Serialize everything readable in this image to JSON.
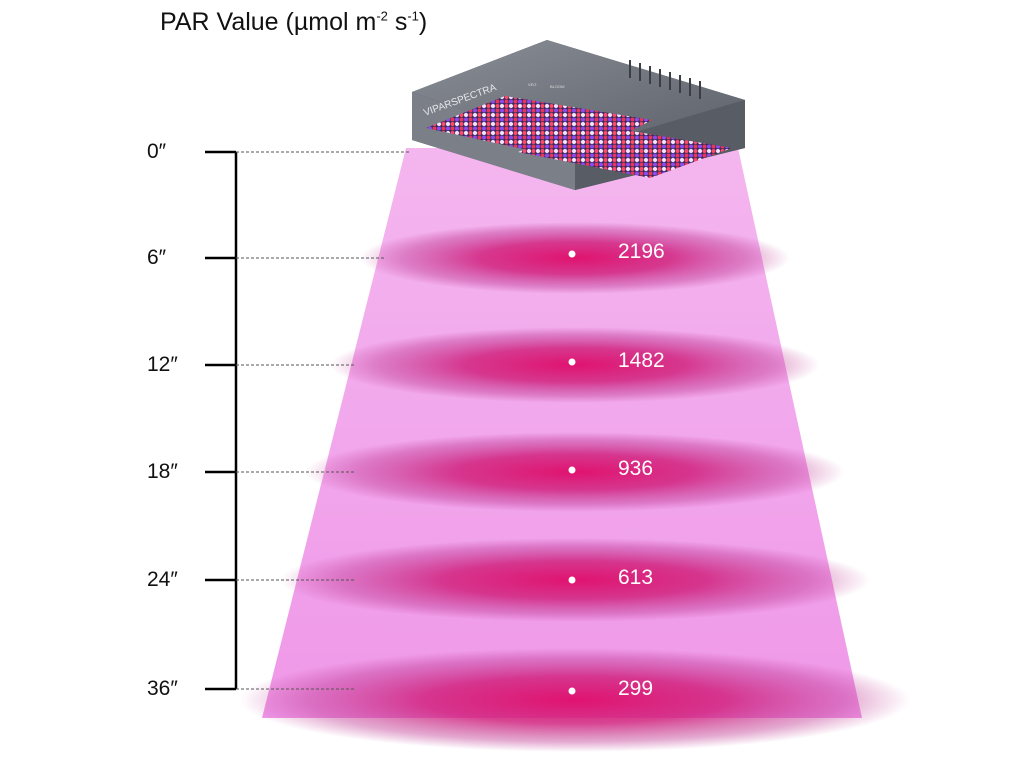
{
  "title": {
    "main": "PAR Value (µmol m",
    "exp1": "-2",
    "mid": " s",
    "exp2": "-1",
    "end": ")"
  },
  "lamp": {
    "brand": "VIPARSPECTRA",
    "switch_labels": [
      "VEG",
      "BLOOM"
    ]
  },
  "colors": {
    "beam": "#f2a8ec",
    "hot_spot": "#e21574",
    "lamp_body": "#6b6f78",
    "switch": "#d61f26"
  },
  "readings": [
    {
      "height": "0″",
      "par": ""
    },
    {
      "height": "6″",
      "par": "2196"
    },
    {
      "height": "12″",
      "par": "1482"
    },
    {
      "height": "18″",
      "par": "936"
    },
    {
      "height": "24″",
      "par": "613"
    },
    {
      "height": "36″",
      "par": "299"
    }
  ]
}
